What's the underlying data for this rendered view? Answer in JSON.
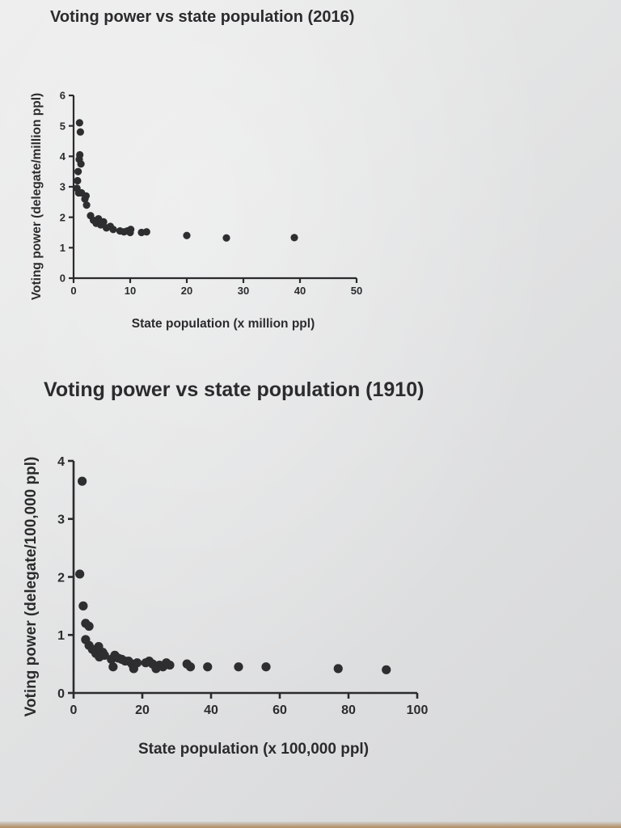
{
  "chart_data": [
    {
      "type": "scatter",
      "title": "Voting power vs state population (2016)",
      "xlabel": "State population (x million ppl)",
      "ylabel": "Voting power (delegate/million ppl)",
      "xlim": [
        0,
        50
      ],
      "ylim": [
        0,
        6
      ],
      "xticks": [
        0,
        10,
        20,
        30,
        40,
        50
      ],
      "yticks": [
        0,
        1,
        2,
        3,
        4,
        5,
        6
      ],
      "grid": false,
      "legend": "none",
      "point_color": "#2e2e30",
      "points": [
        [
          0.6,
          2.95
        ],
        [
          0.7,
          3.2
        ],
        [
          0.8,
          3.5
        ],
        [
          0.9,
          2.8
        ],
        [
          1.0,
          3.9
        ],
        [
          1.05,
          5.1
        ],
        [
          1.1,
          4.05
        ],
        [
          1.2,
          4.8
        ],
        [
          1.3,
          3.75
        ],
        [
          1.4,
          2.8
        ],
        [
          2.0,
          2.6
        ],
        [
          2.2,
          2.7
        ],
        [
          2.3,
          2.4
        ],
        [
          3.0,
          2.05
        ],
        [
          3.5,
          1.9
        ],
        [
          4.0,
          1.8
        ],
        [
          4.4,
          1.95
        ],
        [
          4.8,
          1.75
        ],
        [
          5.3,
          1.85
        ],
        [
          5.8,
          1.65
        ],
        [
          6.5,
          1.7
        ],
        [
          7.0,
          1.6
        ],
        [
          8.2,
          1.55
        ],
        [
          8.9,
          1.52
        ],
        [
          9.5,
          1.55
        ],
        [
          10.0,
          1.5
        ],
        [
          10.1,
          1.6
        ],
        [
          12.0,
          1.5
        ],
        [
          12.9,
          1.52
        ],
        [
          20.0,
          1.4
        ],
        [
          27.0,
          1.32
        ],
        [
          39.0,
          1.33
        ]
      ]
    },
    {
      "type": "scatter",
      "title": "Voting power vs state population (1910)",
      "xlabel": "State population (x 100,000 ppl)",
      "ylabel": "Voting power (delegate/100,000 ppl)",
      "xlim": [
        0,
        100
      ],
      "ylim": [
        0,
        4
      ],
      "xticks": [
        0,
        20,
        40,
        60,
        80,
        100
      ],
      "yticks": [
        0,
        1,
        2,
        3,
        4
      ],
      "grid": false,
      "legend": "none",
      "point_color": "#2e2e30",
      "points": [
        [
          2.5,
          3.65
        ],
        [
          1.8,
          2.05
        ],
        [
          2.8,
          1.5
        ],
        [
          3.5,
          1.2
        ],
        [
          4.5,
          1.15
        ],
        [
          3.5,
          0.92
        ],
        [
          4.5,
          0.82
        ],
        [
          5.5,
          0.75
        ],
        [
          6.5,
          0.68
        ],
        [
          7.3,
          0.8
        ],
        [
          7.5,
          0.62
        ],
        [
          8.5,
          0.7
        ],
        [
          9.0,
          0.65
        ],
        [
          11.0,
          0.58
        ],
        [
          11.5,
          0.45
        ],
        [
          12.0,
          0.65
        ],
        [
          13.0,
          0.6
        ],
        [
          14.0,
          0.58
        ],
        [
          15.0,
          0.55
        ],
        [
          16.0,
          0.55
        ],
        [
          17.0,
          0.5
        ],
        [
          17.5,
          0.42
        ],
        [
          18.5,
          0.52
        ],
        [
          21.0,
          0.52
        ],
        [
          22.0,
          0.55
        ],
        [
          23.0,
          0.5
        ],
        [
          24.0,
          0.42
        ],
        [
          25.0,
          0.48
        ],
        [
          26.0,
          0.45
        ],
        [
          27.0,
          0.52
        ],
        [
          28.0,
          0.48
        ],
        [
          33.0,
          0.5
        ],
        [
          34.0,
          0.45
        ],
        [
          39.0,
          0.45
        ],
        [
          48.0,
          0.45
        ],
        [
          56.0,
          0.45
        ],
        [
          77.0,
          0.42
        ],
        [
          91.0,
          0.4
        ]
      ]
    }
  ]
}
